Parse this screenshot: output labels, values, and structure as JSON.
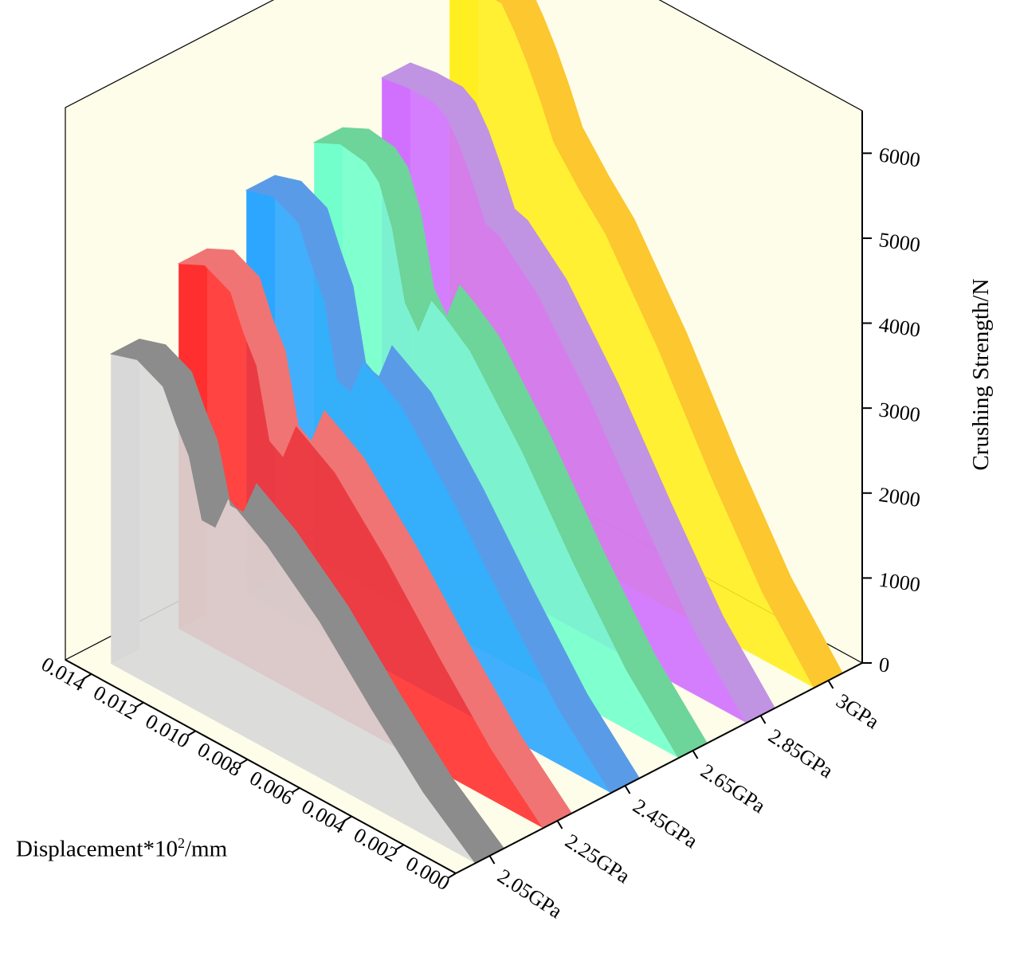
{
  "chart_data": {
    "type": "area",
    "subtype": "3d-wall",
    "xlabel": "Displacement*10",
    "xlabel_sup": "2",
    "xlabel_unit": "/mm",
    "ylabel": "Crushing Strength/N",
    "x_ticks": [
      "0.000",
      "0.002",
      "0.004",
      "0.006",
      "0.008",
      "0.010",
      "0.012",
      "0.014"
    ],
    "y_ticks": [
      "0",
      "1000",
      "2000",
      "3000",
      "4000",
      "5000",
      "6000"
    ],
    "categories": [
      "2.05GPa",
      "2.25GPa",
      "2.45GPa",
      "2.65GPa",
      "2.85GPa",
      "3GPa"
    ],
    "xlim": [
      0,
      0.015
    ],
    "ylim": [
      0,
      6500
    ],
    "grid": false,
    "wall_color": "#fdfde9",
    "floor_color": "#fdfde9",
    "x": [
      0.0,
      0.002,
      0.004,
      0.006,
      0.008,
      0.009,
      0.0095,
      0.01,
      0.0105,
      0.011,
      0.0115,
      0.012,
      0.013,
      0.014
    ],
    "series": [
      {
        "color": "#8c8c8c",
        "side_color": "#d8d8d8",
        "values": [
          0,
          500,
          1150,
          1850,
          2400,
          2600,
          2700,
          2280,
          2280,
          2950,
          3250,
          3600,
          3750,
          3650
        ]
      },
      {
        "color": "#f07474",
        "side_color": "#ff3030",
        "values": [
          0,
          600,
          1350,
          2150,
          2850,
          3050,
          3150,
          2700,
          2800,
          3600,
          3900,
          4300,
          4450,
          4300
        ]
      },
      {
        "color": "#5a9be8",
        "side_color": "#2ea6ff",
        "values": [
          0,
          650,
          1500,
          2400,
          3200,
          3400,
          3500,
          3050,
          3100,
          3950,
          4300,
          4700,
          4850,
          4750
        ]
      },
      {
        "color": "#6dd49a",
        "side_color": "#72ffcc",
        "values": [
          0,
          700,
          1600,
          2600,
          3450,
          3700,
          3800,
          3350,
          3600,
          4400,
          4850,
          5000,
          5050,
          4900
        ]
      },
      {
        "color": "#c193e3",
        "side_color": "#d070ff",
        "values": [
          0,
          750,
          1750,
          2800,
          3700,
          4000,
          4150,
          4200,
          4600,
          4950,
          5200,
          5300,
          5300,
          5250
        ]
      },
      {
        "color": "#fcc72f",
        "side_color": "#ffee20",
        "values": [
          0,
          800,
          1850,
          3000,
          4000,
          4350,
          4550,
          4750,
          5150,
          5500,
          5800,
          6050,
          6050,
          5950
        ]
      }
    ]
  }
}
